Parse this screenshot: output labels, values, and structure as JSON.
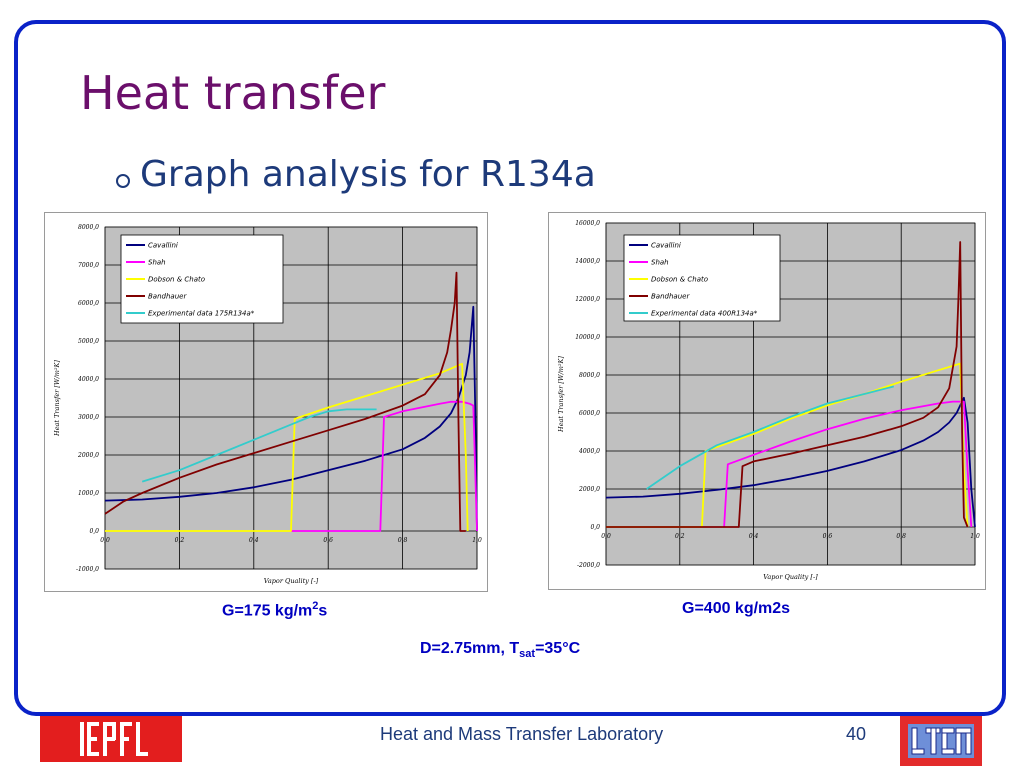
{
  "slide": {
    "title": "Heat transfer",
    "bullet": "Graph analysis for R134a",
    "caption_left_prefix": "G=175 kg/m",
    "caption_left_sup": "2",
    "caption_left_suffix": "s",
    "caption_right": "G=400 kg/m2s",
    "conditions_prefix": "D=2.75mm, T",
    "conditions_sub": "sat",
    "conditions_suffix": "=35°C",
    "footer": "Heat and Mass Transfer Laboratory",
    "page_number": "40",
    "logo_left": "EPFL",
    "logo_right": "LTCM"
  },
  "colors": {
    "frame": "#0a22c8",
    "title": "#6b0f6b",
    "text": "#1d3a7a",
    "caption": "#0000c0",
    "plot_bg": "#c0c0c0",
    "cavallini": "#00007f",
    "shah": "#ff00ff",
    "dobson": "#ffff00",
    "bandhauer": "#800000",
    "experimental": "#33cccc"
  },
  "chart_data": [
    {
      "type": "line",
      "xlabel": "Vapor Quality [-]",
      "ylabel": "Heat Transfer [W/m²K]",
      "xlim": [
        0,
        1
      ],
      "ylim": [
        -1000,
        8000
      ],
      "xticks": [
        "0,0",
        "0,2",
        "0,4",
        "0,6",
        "0,8",
        "1,0"
      ],
      "xtick_values": [
        0,
        0.2,
        0.4,
        0.6,
        0.8,
        1.0
      ],
      "yticks": [
        "-1000,0",
        "0,0",
        "1000,0",
        "2000,0",
        "3000,0",
        "4000,0",
        "5000,0",
        "6000,0",
        "7000,0",
        "8000,0"
      ],
      "ytick_values": [
        -1000,
        0,
        1000,
        2000,
        3000,
        4000,
        5000,
        6000,
        7000,
        8000
      ],
      "grid": true,
      "legend_position": "top-left",
      "series": [
        {
          "name": "Cavallini",
          "color": "#00007f",
          "x": [
            0.0,
            0.1,
            0.2,
            0.3,
            0.4,
            0.5,
            0.6,
            0.7,
            0.8,
            0.86,
            0.9,
            0.93,
            0.95,
            0.97,
            0.98,
            0.99,
            0.995,
            1.0
          ],
          "y": [
            800,
            830,
            900,
            1000,
            1150,
            1350,
            1600,
            1850,
            2150,
            2450,
            2750,
            3100,
            3500,
            4100,
            4700,
            5900,
            3400,
            0
          ]
        },
        {
          "name": "Shah",
          "color": "#ff00ff",
          "x": [
            0.5,
            0.74,
            0.75,
            0.8,
            0.85,
            0.9,
            0.93,
            0.96,
            0.98,
            0.99,
            1.0
          ],
          "y": [
            0,
            0,
            3000,
            3150,
            3250,
            3350,
            3400,
            3400,
            3350,
            3300,
            0
          ]
        },
        {
          "name": "Dobson & Chato",
          "color": "#ffff00",
          "x": [
            0.0,
            0.5,
            0.51,
            0.6,
            0.7,
            0.8,
            0.9,
            0.96,
            0.97,
            0.975
          ],
          "y": [
            0,
            0,
            2950,
            3250,
            3550,
            3850,
            4150,
            4400,
            2000,
            0
          ]
        },
        {
          "name": "Bandhauer",
          "color": "#800000",
          "x": [
            0.0,
            0.05,
            0.1,
            0.2,
            0.3,
            0.4,
            0.5,
            0.6,
            0.7,
            0.8,
            0.86,
            0.9,
            0.92,
            0.93,
            0.94,
            0.945,
            0.95,
            0.955,
            0.96,
            0.97
          ],
          "y": [
            450,
            780,
            1000,
            1400,
            1750,
            2050,
            2350,
            2650,
            2950,
            3300,
            3600,
            4100,
            4700,
            5300,
            6000,
            6800,
            3000,
            0,
            0,
            0
          ]
        },
        {
          "name": "Experimental data 175R134a*",
          "color": "#33cccc",
          "x": [
            0.1,
            0.2,
            0.3,
            0.4,
            0.5,
            0.55,
            0.6,
            0.65,
            0.7,
            0.73
          ],
          "y": [
            1300,
            1600,
            2000,
            2400,
            2800,
            3000,
            3150,
            3200,
            3200,
            3200
          ]
        }
      ]
    },
    {
      "type": "line",
      "xlabel": "Vapor Quality [-]",
      "ylabel": "Heat Transfer [W/m²K]",
      "xlim": [
        0,
        1
      ],
      "ylim": [
        -2000,
        16000
      ],
      "xticks": [
        "0,0",
        "0,2",
        "0,4",
        "0,6",
        "0,8",
        "1,0"
      ],
      "xtick_values": [
        0,
        0.2,
        0.4,
        0.6,
        0.8,
        1.0
      ],
      "yticks": [
        "-2000,0",
        "0,0",
        "2000,0",
        "4000,0",
        "6000,0",
        "8000,0",
        "10000,0",
        "12000,0",
        "14000,0",
        "16000,0"
      ],
      "ytick_values": [
        -2000,
        0,
        2000,
        4000,
        6000,
        8000,
        10000,
        12000,
        14000,
        16000
      ],
      "grid": true,
      "legend_position": "top-left",
      "series": [
        {
          "name": "Cavallini",
          "color": "#00007f",
          "x": [
            0.0,
            0.1,
            0.2,
            0.3,
            0.4,
            0.5,
            0.6,
            0.7,
            0.8,
            0.86,
            0.9,
            0.93,
            0.95,
            0.97,
            0.98,
            0.99,
            1.0
          ],
          "y": [
            1550,
            1600,
            1750,
            1950,
            2200,
            2550,
            2950,
            3450,
            4050,
            4550,
            5000,
            5500,
            6000,
            6800,
            5500,
            2000,
            0
          ]
        },
        {
          "name": "Shah",
          "color": "#ff00ff",
          "x": [
            0.32,
            0.33,
            0.4,
            0.5,
            0.6,
            0.7,
            0.8,
            0.9,
            0.94,
            0.97,
            0.98,
            0.99
          ],
          "y": [
            0,
            3300,
            3800,
            4500,
            5150,
            5700,
            6150,
            6500,
            6600,
            6600,
            3000,
            0
          ]
        },
        {
          "name": "Dobson & Chato",
          "color": "#ffff00",
          "x": [
            0.0,
            0.26,
            0.27,
            0.4,
            0.5,
            0.6,
            0.7,
            0.8,
            0.9,
            0.96,
            0.97,
            0.98
          ],
          "y": [
            0,
            0,
            4000,
            4900,
            5700,
            6400,
            7000,
            7650,
            8250,
            8600,
            3000,
            0
          ]
        },
        {
          "name": "Bandhauer",
          "color": "#800000",
          "x": [
            0.0,
            0.36,
            0.37,
            0.4,
            0.5,
            0.6,
            0.7,
            0.8,
            0.86,
            0.9,
            0.93,
            0.95,
            0.955,
            0.96,
            0.965,
            0.97,
            0.98
          ],
          "y": [
            0,
            0,
            3200,
            3450,
            3850,
            4300,
            4750,
            5300,
            5750,
            6300,
            7300,
            9500,
            12000,
            15000,
            5000,
            500,
            0
          ]
        },
        {
          "name": "Experimental data 400R134a*",
          "color": "#33cccc",
          "x": [
            0.11,
            0.2,
            0.3,
            0.4,
            0.5,
            0.6,
            0.7,
            0.78
          ],
          "y": [
            2000,
            3200,
            4300,
            5000,
            5800,
            6500,
            7000,
            7400
          ]
        }
      ]
    }
  ]
}
